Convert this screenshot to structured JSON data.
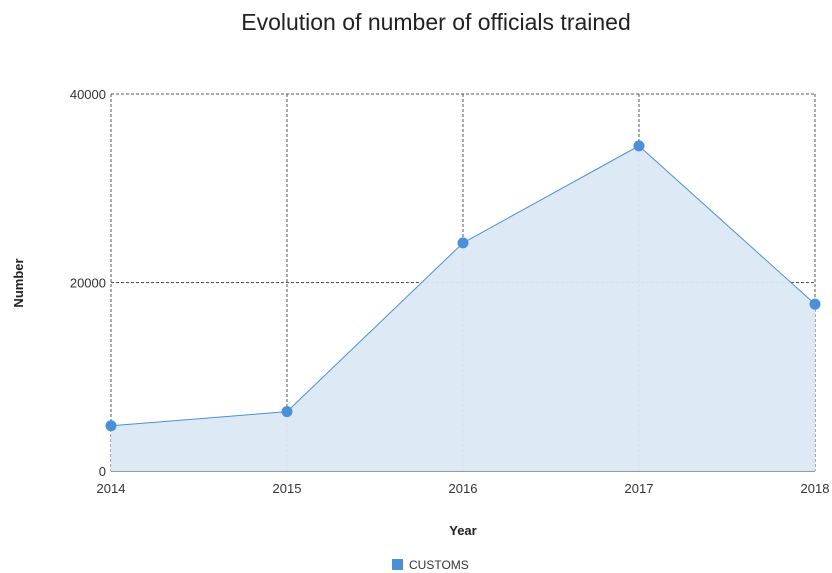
{
  "chart_data": {
    "type": "area",
    "title": "Evolution of number of officials trained",
    "xlabel": "Year",
    "ylabel": "Number",
    "categories": [
      "2014",
      "2015",
      "2016",
      "2017",
      "2018"
    ],
    "series": [
      {
        "name": "CUSTOMS",
        "values": [
          4800,
          6300,
          24200,
          34500,
          17700
        ],
        "color": "#4a90d9",
        "fill_color": "#dce8f6"
      }
    ],
    "ylim": [
      0,
      40000
    ],
    "yticks": [
      0,
      20000,
      40000
    ],
    "grid": true,
    "legend_position": "bottom"
  }
}
